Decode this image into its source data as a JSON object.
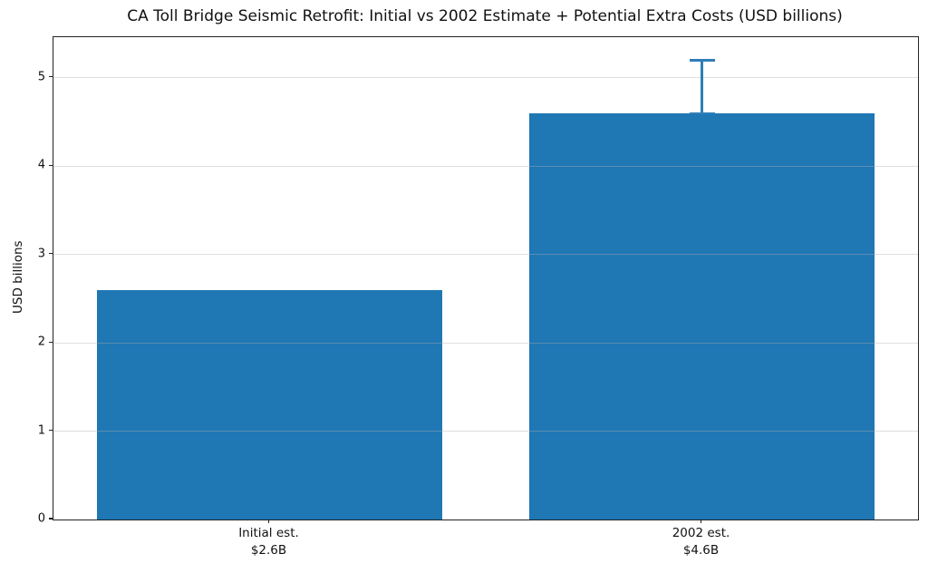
{
  "chart_data": {
    "type": "bar",
    "title": "CA Toll Bridge Seismic Retrofit: Initial vs 2002 Estimate + Potential Extra Costs (USD billions)",
    "xlabel": "",
    "ylabel": "USD billions",
    "categories": [
      "Initial est.",
      "2002 est."
    ],
    "category_sublabels": [
      "$2.6B",
      "$4.6B"
    ],
    "values": [
      2.6,
      4.6
    ],
    "error_up": [
      0,
      0.6
    ],
    "yticks": [
      0,
      1,
      2,
      3,
      4,
      5
    ],
    "ytick_labels": [
      "0",
      "1",
      "2",
      "3",
      "4",
      "5"
    ],
    "ylim": [
      0,
      5.46
    ],
    "grid": true,
    "legend_position": "none",
    "bar_width_fraction": 0.8,
    "colors": {
      "bar": "#1f77b4",
      "error_bar": "#2e7eb8",
      "grid": "#b0b0b0",
      "spine": "#222222",
      "text": "#111111",
      "background": "#ffffff"
    }
  }
}
